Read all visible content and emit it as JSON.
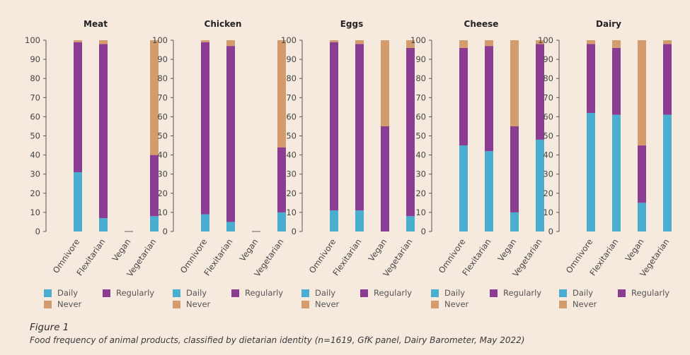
{
  "colors": {
    "daily": "#4aaed0",
    "regularly": "#8b3e91",
    "never": "#d49b6c",
    "axis": "#555555"
  },
  "legend": [
    {
      "key": "daily",
      "label": "Daily"
    },
    {
      "key": "regularly",
      "label": "Regularly"
    },
    {
      "key": "never",
      "label": "Never"
    }
  ],
  "chart_data": [
    {
      "type": "bar",
      "stacked": true,
      "title": "Meat",
      "categories": [
        "Omnivore",
        "Flexitarian",
        "Vegan",
        "Vegetarian"
      ],
      "yticks": [
        "0",
        "10",
        "20",
        "30",
        "40",
        "50",
        "60",
        "70",
        "80",
        "90",
        "100"
      ],
      "ylim": [
        0,
        100
      ],
      "series": [
        {
          "name": "Daily",
          "values": [
            31,
            7,
            0,
            8
          ]
        },
        {
          "name": "Regularly",
          "values": [
            68,
            91,
            0,
            32
          ]
        },
        {
          "name": "Never",
          "values": [
            1,
            2,
            0,
            60
          ]
        }
      ]
    },
    {
      "type": "bar",
      "stacked": true,
      "title": "Chicken",
      "categories": [
        "Omnivore",
        "Flexitarian",
        "Vegan",
        "Vegetarian"
      ],
      "yticks": [
        "0",
        "10",
        "20",
        "30",
        "40",
        "50",
        "60",
        "70",
        "80",
        "90",
        "100"
      ],
      "ylim": [
        0,
        100
      ],
      "series": [
        {
          "name": "Daily",
          "values": [
            9,
            5,
            0,
            10
          ]
        },
        {
          "name": "Regularly",
          "values": [
            90,
            92,
            0,
            34
          ]
        },
        {
          "name": "Never",
          "values": [
            1,
            3,
            0,
            56
          ]
        }
      ]
    },
    {
      "type": "bar",
      "stacked": true,
      "title": "Eggs",
      "categories": [
        "Omnivore",
        "Flexitarian",
        "Vegan",
        "Vegetarian"
      ],
      "yticks": [
        "0",
        "10",
        "20",
        "30",
        "40",
        "50",
        "60",
        "70",
        "80",
        "90",
        "100"
      ],
      "ylim": [
        0,
        100
      ],
      "series": [
        {
          "name": "Daily",
          "values": [
            11,
            11,
            0,
            8
          ]
        },
        {
          "name": "Regularly",
          "values": [
            88,
            87,
            55,
            88
          ]
        },
        {
          "name": "Never",
          "values": [
            1,
            2,
            45,
            4
          ]
        }
      ]
    },
    {
      "type": "bar",
      "stacked": true,
      "title": "Cheese",
      "categories": [
        "Omnivore",
        "Flexitarian",
        "Vegan",
        "Vegetarian"
      ],
      "yticks": [
        "0",
        "10",
        "20",
        "30",
        "40",
        "50",
        "60",
        "70",
        "80",
        "90",
        "100"
      ],
      "ylim": [
        0,
        100
      ],
      "series": [
        {
          "name": "Daily",
          "values": [
            45,
            42,
            10,
            48
          ]
        },
        {
          "name": "Regularly",
          "values": [
            51,
            55,
            45,
            50
          ]
        },
        {
          "name": "Never",
          "values": [
            4,
            3,
            45,
            2
          ]
        }
      ]
    },
    {
      "type": "bar",
      "stacked": true,
      "title": "Dairy",
      "categories": [
        "Omnivore",
        "Flexitarian",
        "Vegan",
        "Vegetarian"
      ],
      "yticks": [
        "0",
        "10",
        "20",
        "30",
        "40",
        "50",
        "60",
        "70",
        "80",
        "90",
        "100"
      ],
      "ylim": [
        0,
        100
      ],
      "series": [
        {
          "name": "Daily",
          "values": [
            62,
            61,
            15,
            61
          ]
        },
        {
          "name": "Regularly",
          "values": [
            36,
            35,
            30,
            37
          ]
        },
        {
          "name": "Never",
          "values": [
            2,
            4,
            55,
            2
          ]
        }
      ]
    }
  ],
  "caption": {
    "figure": "Figure 1",
    "text": "Food frequency of animal products, classified by dietarian identity (n=1619, GfK panel, Dairy Barometer, May 2022)"
  }
}
